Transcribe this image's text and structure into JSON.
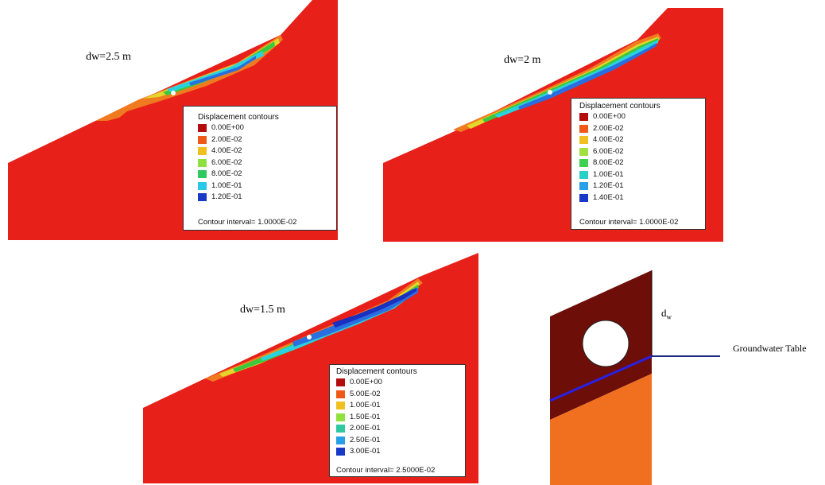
{
  "colors": {
    "slope": "#e8201a",
    "dark_red": "#c41410",
    "orange": "#f07a20",
    "yellow": "#e4d62a",
    "green": "#3cc83c",
    "cyan": "#2ad2e0",
    "blue": "#2a6ee0",
    "dark_blue": "#1a30c0",
    "schematic_upper": "#6e0e08",
    "schematic_lower": "#f07020",
    "water_line": "#2a20e0",
    "ground_line": "#1a2a80"
  },
  "panels": [
    {
      "dw_label": "dw=2.5 m",
      "legend": {
        "title": "Displacement contours",
        "entries": [
          {
            "value": "0.00E+00",
            "color": "#b40c0c"
          },
          {
            "value": "2.00E-02",
            "color": "#f05818"
          },
          {
            "value": "4.00E-02",
            "color": "#f0c020"
          },
          {
            "value": "6.00E-02",
            "color": "#8ee040"
          },
          {
            "value": "8.00E-02",
            "color": "#30c860"
          },
          {
            "value": "1.00E-01",
            "color": "#28c8e8"
          },
          {
            "value": "1.20E-01",
            "color": "#1838c8"
          }
        ],
        "interval": "Contour interval= 1.0000E-02"
      }
    },
    {
      "dw_label": "dw=2 m",
      "legend": {
        "title": "Displacement contours",
        "entries": [
          {
            "value": "0.00E+00",
            "color": "#b40c0c"
          },
          {
            "value": "2.00E-02",
            "color": "#f05818"
          },
          {
            "value": "4.00E-02",
            "color": "#f0c020"
          },
          {
            "value": "6.00E-02",
            "color": "#a0e040"
          },
          {
            "value": "8.00E-02",
            "color": "#40d050"
          },
          {
            "value": "1.00E-01",
            "color": "#28d0c8"
          },
          {
            "value": "1.20E-01",
            "color": "#28a0e8"
          },
          {
            "value": "1.40E-01",
            "color": "#1838c8"
          }
        ],
        "interval": "Contour interval= 1.0000E-02"
      }
    },
    {
      "dw_label": "dw=1.5 m",
      "legend": {
        "title": "Displacement contours",
        "entries": [
          {
            "value": "0.00E+00",
            "color": "#b40c0c"
          },
          {
            "value": "5.00E-02",
            "color": "#f05818"
          },
          {
            "value": "1.00E-01",
            "color": "#f0c020"
          },
          {
            "value": "1.50E-01",
            "color": "#90e040"
          },
          {
            "value": "2.00E-01",
            "color": "#30c8a0"
          },
          {
            "value": "2.50E-01",
            "color": "#28a0e8"
          },
          {
            "value": "3.00E-01",
            "color": "#1838c8"
          }
        ],
        "interval": "Contour interval= 2.5000E-02"
      }
    }
  ],
  "schematic": {
    "dw_symbol": "d",
    "dw_subscript": "w",
    "groundwater_label": "Groundwater Table"
  }
}
